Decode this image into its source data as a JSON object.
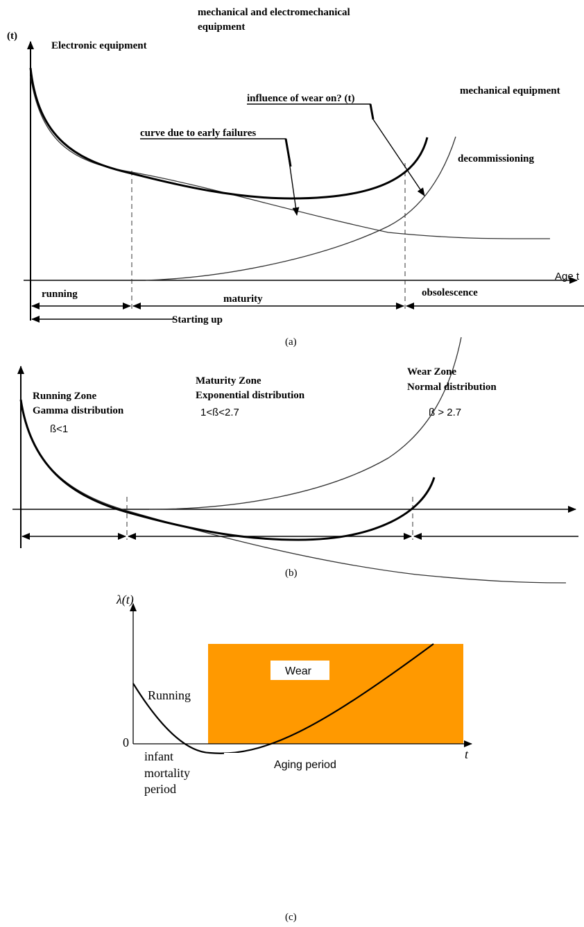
{
  "panel_a": {
    "y_axis_label": "(t)",
    "label_mech_electromech_line1": "mechanical and electromechanical",
    "label_mech_electromech_line2": "equipment",
    "label_electronic": "Electronic equipment",
    "label_mechanical": "mechanical equipment",
    "label_wear": "influence of wear on? (t)",
    "label_early_failures": "curve due to early failures",
    "label_decommissioning": "decommissioning",
    "x_axis_label": "Age t",
    "phase_running": "running",
    "phase_maturity": "maturity",
    "phase_obsolescence": "obsolescence",
    "phase_starting_up": "Starting up",
    "caption": "(a)"
  },
  "panel_b": {
    "running_zone": "Running Zone",
    "running_dist": "Gamma distribution",
    "running_beta": "ß<1",
    "maturity_zone": "Maturity Zone",
    "maturity_dist": "Exponential distribution",
    "maturity_beta": "1<ß<2.7",
    "wear_zone": "Wear Zone",
    "wear_dist": "Normal distribution",
    "wear_beta": "ß > 2.7",
    "caption": "(b)"
  },
  "panel_c": {
    "y_axis_label": "λ(t)",
    "x_axis_label": "t",
    "origin": "0",
    "running": "Running",
    "wear": "Wear",
    "aging_period": "Aging period",
    "infant_line1": "infant",
    "infant_line2": "mortality",
    "infant_line3": "period",
    "wear_region_color": "#FF9900",
    "caption": "(c)"
  }
}
